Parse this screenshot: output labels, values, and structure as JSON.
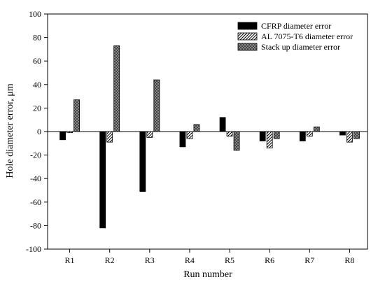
{
  "chart_data": {
    "type": "bar",
    "title": "",
    "xlabel": "Run number",
    "ylabel": "Hole diameter error, μm",
    "ylim": [
      -100,
      100
    ],
    "yticks": [
      -100,
      -80,
      -60,
      -40,
      -20,
      0,
      20,
      40,
      60,
      80,
      100
    ],
    "categories": [
      "R1",
      "R2",
      "R3",
      "R4",
      "R5",
      "R6",
      "R7",
      "R8"
    ],
    "legend_position": "top-right",
    "grid": false,
    "series": [
      {
        "name": "CFRP diameter error",
        "pattern": "solid",
        "color": "#000000",
        "values": [
          -7,
          -82,
          -51,
          -13,
          12,
          -8,
          -8,
          -3
        ]
      },
      {
        "name": "AL 7075-T6 diameter error",
        "pattern": "diagonal-hatch",
        "color": "#ffffff",
        "values": [
          -1,
          -9,
          -5,
          -6,
          -4,
          -14,
          -4,
          -9
        ]
      },
      {
        "name": "Stack up diameter error",
        "pattern": "crosshatch-gray",
        "color": "#8c8c8c",
        "values": [
          27,
          73,
          44,
          6,
          -16,
          -6,
          4,
          -6
        ]
      }
    ]
  }
}
